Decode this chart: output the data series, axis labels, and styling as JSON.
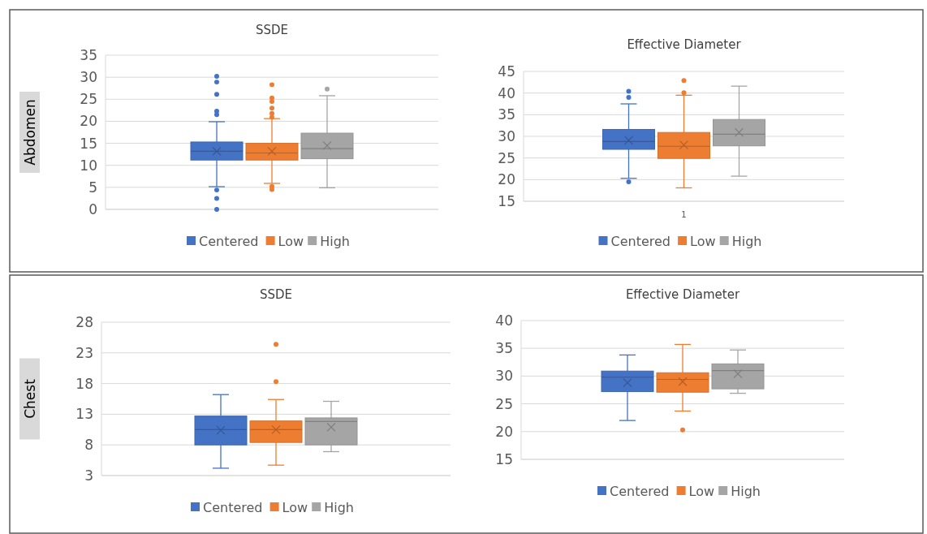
{
  "chart_data": [
    {
      "type": "box",
      "title": "SSDE",
      "ylabel": "Abdomen",
      "categories": [
        null
      ],
      "ylim": [
        0,
        35
      ],
      "yticks": [
        0,
        5,
        10,
        15,
        20,
        25,
        30,
        35
      ],
      "grid": "y",
      "legend": "bottom",
      "series": [
        {
          "name": "Centered",
          "color": "#4472c4",
          "boxes": [
            {
              "low": 5.15,
              "q1": 11.2,
              "median": 13.2,
              "q3": 15.3,
              "high": 19.9,
              "mean": 13.2,
              "outliers": [
                30.2,
                28.9,
                26.1,
                22.3,
                21.5,
                4.4,
                2.5,
                0
              ]
            }
          ]
        },
        {
          "name": "Low",
          "color": "#ed7d31",
          "boxes": [
            {
              "low": 5.9,
              "q1": 11.2,
              "median": 12.8,
              "q3": 15.0,
              "high": 20.6,
              "mean": 13.2,
              "outliers": [
                28.3,
                25.3,
                24.5,
                23.0,
                21.8,
                20.9,
                5.2,
                4.5
              ]
            }
          ]
        },
        {
          "name": "High",
          "color": "#a5a5a5",
          "boxes": [
            {
              "low": 4.9,
              "q1": 11.5,
              "median": 13.8,
              "q3": 17.3,
              "high": 25.8,
              "mean": 14.5,
              "outliers": [
                27.3
              ]
            }
          ]
        }
      ]
    },
    {
      "type": "box",
      "title": "Effective Diameter",
      "categories": [
        "1"
      ],
      "ylim": [
        15,
        45
      ],
      "yticks": [
        15,
        20,
        25,
        30,
        35,
        40,
        45
      ],
      "grid": "y",
      "legend": "bottom",
      "series": [
        {
          "name": "Centered",
          "color": "#4472c4",
          "boxes": [
            {
              "low": 20.3,
              "q1": 27.0,
              "median": 28.8,
              "q3": 31.6,
              "high": 37.5,
              "mean": 29.1,
              "outliers": [
                40.4,
                39.0,
                19.5
              ]
            }
          ]
        },
        {
          "name": "Low",
          "color": "#ed7d31",
          "boxes": [
            {
              "low": 18.1,
              "q1": 24.9,
              "median": 27.7,
              "q3": 30.9,
              "high": 39.5,
              "mean": 28.0,
              "outliers": [
                42.9,
                40.1
              ]
            }
          ]
        },
        {
          "name": "High",
          "color": "#a5a5a5",
          "boxes": [
            {
              "low": 20.8,
              "q1": 27.8,
              "median": 30.5,
              "q3": 33.9,
              "high": 41.6,
              "mean": 30.9
            }
          ]
        }
      ]
    },
    {
      "type": "box",
      "title": "SSDE",
      "ylabel": "Chest",
      "categories": [
        null
      ],
      "ylim": [
        3,
        28
      ],
      "yticks": [
        3,
        8,
        13,
        18,
        23,
        28
      ],
      "grid": "y",
      "legend": "bottom",
      "series": [
        {
          "name": "Centered",
          "color": "#4472c4",
          "boxes": [
            {
              "low": 4.2,
              "q1": 8.0,
              "median": 10.5,
              "q3": 12.7,
              "high": 16.2,
              "mean": 10.4
            }
          ]
        },
        {
          "name": "Low",
          "color": "#ed7d31",
          "boxes": [
            {
              "low": 4.7,
              "q1": 8.4,
              "median": 10.5,
              "q3": 11.9,
              "high": 15.4,
              "mean": 10.5,
              "outliers": [
                24.4,
                18.3
              ]
            }
          ]
        },
        {
          "name": "High",
          "color": "#a5a5a5",
          "boxes": [
            {
              "low": 6.9,
              "q1": 8.0,
              "median": 11.8,
              "q3": 12.4,
              "high": 15.1,
              "mean": 10.9
            }
          ]
        }
      ]
    },
    {
      "type": "box",
      "title": "Effective Diameter",
      "categories": [
        null
      ],
      "ylim": [
        15,
        40
      ],
      "yticks": [
        15,
        20,
        25,
        30,
        35,
        40
      ],
      "grid": "y",
      "legend": "bottom",
      "series": [
        {
          "name": "Centered",
          "color": "#4472c4",
          "boxes": [
            {
              "low": 22.0,
              "q1": 27.2,
              "median": 29.8,
              "q3": 30.9,
              "high": 33.8,
              "mean": 28.8
            }
          ]
        },
        {
          "name": "Low",
          "color": "#ed7d31",
          "boxes": [
            {
              "low": 23.7,
              "q1": 27.1,
              "median": 29.4,
              "q3": 30.6,
              "high": 35.7,
              "mean": 29.0,
              "outliers": [
                20.3
              ]
            }
          ]
        },
        {
          "name": "High",
          "color": "#a5a5a5",
          "boxes": [
            {
              "low": 26.9,
              "q1": 27.7,
              "median": 31.0,
              "q3": 32.2,
              "high": 34.7,
              "mean": 30.4
            }
          ]
        }
      ]
    }
  ]
}
